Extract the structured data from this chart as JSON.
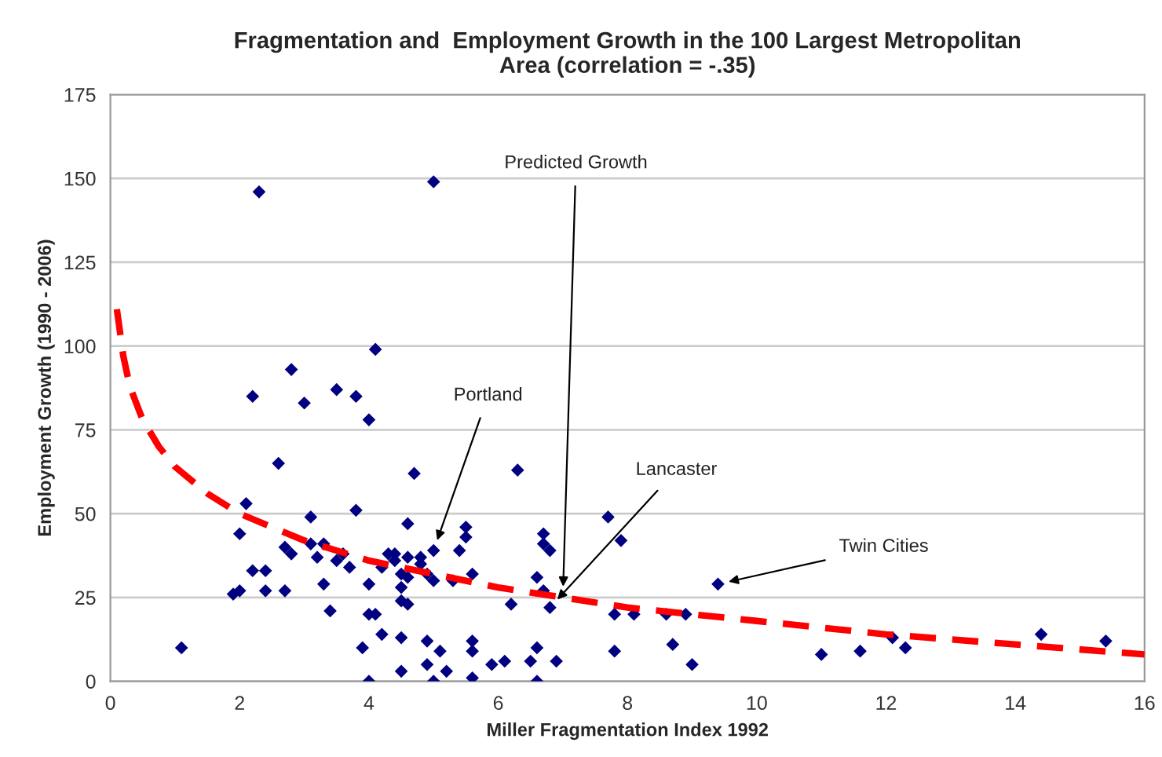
{
  "chart_data": {
    "type": "scatter",
    "title": "Fragmentation and  Employment Growth in the 100 Largest Metropolitan\nArea (correlation = -.35)",
    "xlabel": "Miller Fragmentation Index 1992",
    "ylabel": "Employment Growth (1990 - 2006)",
    "xlim": [
      0,
      16
    ],
    "xticks": [
      0,
      2,
      4,
      6,
      8,
      10,
      12,
      14,
      16
    ],
    "ylim": [
      0,
      175
    ],
    "yticks": [
      0,
      25,
      50,
      75,
      100,
      125,
      150,
      175
    ],
    "grid": "y",
    "legend": false,
    "series": [
      {
        "color": "#000080",
        "marker": "diamond",
        "x": [
          1.1,
          1.9,
          2.0,
          2.0,
          2.1,
          2.2,
          2.3,
          2.2,
          2.4,
          2.4,
          2.6,
          2.7,
          2.8,
          2.8,
          2.7,
          3.0,
          3.1,
          3.1,
          3.2,
          3.3,
          3.3,
          3.4,
          3.5,
          3.5,
          3.6,
          3.7,
          3.8,
          3.8,
          3.9,
          4.0,
          4.0,
          4.0,
          4.1,
          4.1,
          4.0,
          4.2,
          4.2,
          4.3,
          4.4,
          4.4,
          4.5,
          4.5,
          4.6,
          4.6,
          4.6,
          4.7,
          4.5,
          4.5,
          4.5,
          4.6,
          4.8,
          4.8,
          4.9,
          4.9,
          4.9,
          5.0,
          5.0,
          5.0,
          5.0,
          5.1,
          5.2,
          5.3,
          5.4,
          5.5,
          5.5,
          5.6,
          5.6,
          5.6,
          5.6,
          5.9,
          6.1,
          6.2,
          6.3,
          6.5,
          6.6,
          6.6,
          6.6,
          6.7,
          6.7,
          6.7,
          6.8,
          6.8,
          6.9,
          7.7,
          7.8,
          7.8,
          7.9,
          8.1,
          8.6,
          8.7,
          8.9,
          9.0,
          9.4,
          11.0,
          11.6,
          12.1,
          12.3,
          14.4,
          15.4
        ],
        "values": [
          10,
          26,
          27,
          44,
          53,
          33,
          146,
          85,
          33,
          27,
          65,
          40,
          93,
          38,
          27,
          83,
          49,
          41,
          37,
          41,
          29,
          21,
          87,
          36,
          38,
          34,
          85,
          51,
          10,
          0,
          78,
          29,
          99,
          20,
          20,
          14,
          34,
          38,
          38,
          36,
          28,
          32,
          37,
          31,
          47,
          62,
          24,
          13,
          3,
          23,
          37,
          35,
          32,
          12,
          5,
          149,
          39,
          30,
          0,
          9,
          3,
          30,
          39,
          43,
          46,
          32,
          12,
          9,
          1,
          5,
          6,
          23,
          63,
          6,
          10,
          0,
          31,
          27,
          41,
          44,
          22,
          39,
          6,
          49,
          20,
          9,
          42,
          20,
          20,
          11,
          20,
          5,
          29,
          8,
          9,
          13,
          10,
          14,
          12
        ]
      },
      {
        "type": "line",
        "color": "#ff0000",
        "line_style": "dashed",
        "marker": "none",
        "x": [
          0.1,
          0.2,
          0.3,
          0.5,
          0.75,
          1,
          1.5,
          2,
          3,
          4,
          5,
          6,
          7,
          8,
          10,
          12,
          14,
          16
        ],
        "values": [
          111,
          97,
          88,
          78,
          70,
          64,
          56,
          50,
          42,
          36,
          32,
          28,
          25,
          22,
          18,
          14,
          11,
          8
        ]
      }
    ],
    "annotations": [
      {
        "text": "Predicted Growth",
        "x": 7,
        "y": 25
      },
      {
        "text": "Portland",
        "x": 5.0,
        "y": 39
      },
      {
        "text": "Lancaster",
        "x": 6.8,
        "y": 22
      },
      {
        "text": "Twin Cities",
        "x": 9.4,
        "y": 29
      }
    ]
  }
}
